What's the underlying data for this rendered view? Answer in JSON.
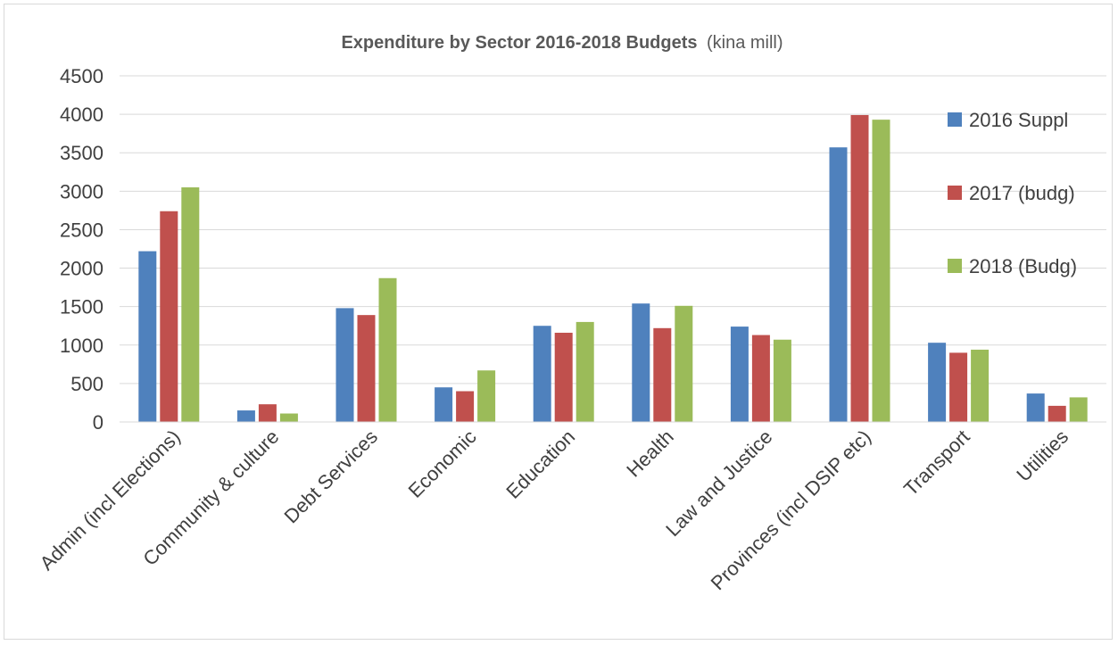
{
  "chart_data": {
    "type": "bar",
    "title": "Expenditure by Sector 2016-2018 Budgets",
    "subtitle": "(kina mill)",
    "xlabel": "",
    "ylabel": "",
    "ylim": [
      0,
      4500
    ],
    "yticks": [
      0,
      500,
      1000,
      1500,
      2000,
      2500,
      3000,
      3500,
      4000,
      4500
    ],
    "grid": true,
    "legend_position": "right",
    "categories": [
      "Admin (incl Elections)",
      "Community & culture",
      "Debt Services",
      "Economic",
      "Education",
      "Health",
      "Law and Justice",
      "Provinces (incl DSIP etc)",
      "Transport",
      "Utilities"
    ],
    "series": [
      {
        "name": "2016 Suppl",
        "color": "#4f81bd",
        "values": [
          2220,
          150,
          1480,
          450,
          1250,
          1540,
          1240,
          3570,
          1030,
          370
        ]
      },
      {
        "name": "2017 (budg)",
        "color": "#c0504d",
        "values": [
          2740,
          230,
          1390,
          400,
          1160,
          1220,
          1130,
          3990,
          900,
          210
        ]
      },
      {
        "name": "2018 (Budg)",
        "color": "#9bbb59",
        "values": [
          3050,
          110,
          1870,
          670,
          1300,
          1510,
          1070,
          3930,
          940,
          320
        ]
      }
    ]
  }
}
